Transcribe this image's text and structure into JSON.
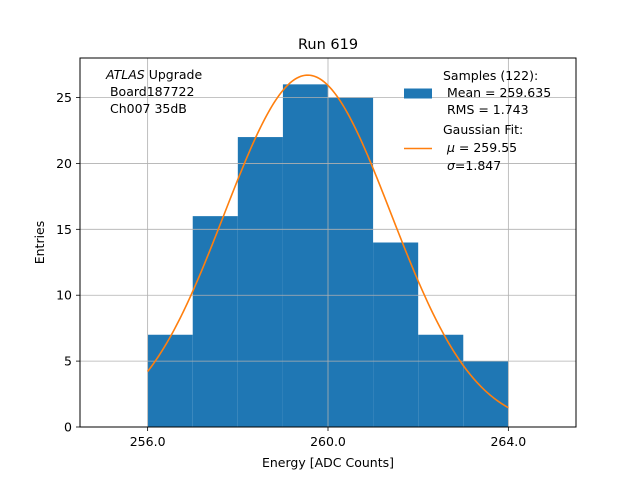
{
  "chart_data": {
    "type": "bar",
    "title": "Run 619",
    "xlabel": "Energy [ADC Counts]",
    "ylabel": "Entries",
    "xlim": [
      254.5,
      265.5
    ],
    "ylim": [
      0,
      28
    ],
    "grid": true,
    "x_ticks": [
      256,
      260,
      264
    ],
    "x_tick_labels": [
      "256.0",
      "260.0",
      "264.0"
    ],
    "y_ticks": [
      0,
      5,
      10,
      15,
      20,
      25
    ],
    "y_tick_labels": [
      "0",
      "5",
      "10",
      "15",
      "20",
      "25"
    ],
    "annotation": {
      "atlas": "ATLAS",
      "upgrade": " Upgrade",
      "board": " Board187722",
      "channel": " Ch007 35dB"
    },
    "legend_position": "top-right",
    "histogram": {
      "bin_edges": [
        256,
        257,
        258,
        259,
        260,
        261,
        262,
        263,
        264
      ],
      "counts": [
        7,
        16,
        22,
        26,
        25,
        14,
        7,
        5
      ],
      "color": "#1f77b4",
      "legend_lines": [
        "Samples (122):",
        " Mean = 259.635",
        " RMS = 1.743"
      ]
    },
    "fit": {
      "type": "gaussian",
      "mu": 259.55,
      "sigma": 1.847,
      "amplitude": 26.7,
      "x_range": [
        256,
        264
      ],
      "color": "#ff7f0e",
      "legend_title": "Gaussian Fit:",
      "legend_mu_symbol": "μ",
      "legend_mu_value": " = 259.55",
      "legend_sigma_symbol": "σ",
      "legend_sigma_value": "=1.847"
    }
  }
}
